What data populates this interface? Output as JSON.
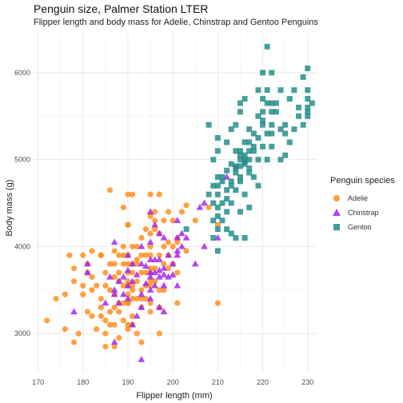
{
  "chart_data": {
    "type": "scatter",
    "title": "Penguin size, Palmer Station LTER",
    "subtitle": "Flipper length and body mass for Adelie, Chinstrap and Gentoo Penguins",
    "xlabel": "Flipper length (mm)",
    "ylabel": "Body mass (g)",
    "xlim": [
      169,
      232
    ],
    "ylim": [
      2550,
      6450
    ],
    "x_ticks": [
      170,
      180,
      190,
      200,
      210,
      220,
      230
    ],
    "y_ticks": [
      3000,
      4000,
      5000,
      6000
    ],
    "grid": true,
    "legend": {
      "title": "Penguin species",
      "placement": "right"
    },
    "series": [
      {
        "name": "Adelie",
        "color": "#FF8C1A",
        "marker": "circle",
        "points": [
          [
            172,
            3150
          ],
          [
            174,
            3400
          ],
          [
            176,
            3450
          ],
          [
            176,
            3050
          ],
          [
            177,
            3900
          ],
          [
            178,
            2900
          ],
          [
            178,
            3750
          ],
          [
            178,
            3600
          ],
          [
            179,
            3000
          ],
          [
            180,
            3550
          ],
          [
            180,
            3450
          ],
          [
            180,
            3900
          ],
          [
            181,
            3250
          ],
          [
            181,
            3800
          ],
          [
            181,
            3700
          ],
          [
            182,
            3200
          ],
          [
            182,
            3500
          ],
          [
            182,
            3950
          ],
          [
            183,
            3550
          ],
          [
            183,
            3050
          ],
          [
            184,
            3400
          ],
          [
            184,
            3900
          ],
          [
            184,
            3300
          ],
          [
            184,
            3900
          ],
          [
            185,
            3000
          ],
          [
            185,
            3700
          ],
          [
            185,
            3150
          ],
          [
            185,
            3550
          ],
          [
            185,
            2850
          ],
          [
            186,
            3250
          ],
          [
            186,
            4650
          ],
          [
            186,
            3800
          ],
          [
            186,
            3500
          ],
          [
            186,
            3100
          ],
          [
            187,
            3300
          ],
          [
            187,
            3650
          ],
          [
            187,
            2850
          ],
          [
            187,
            3450
          ],
          [
            187,
            3100
          ],
          [
            187,
            3800
          ],
          [
            188,
            3250
          ],
          [
            188,
            3600
          ],
          [
            188,
            2950
          ],
          [
            188,
            3350
          ],
          [
            188,
            3700
          ],
          [
            188,
            3900
          ],
          [
            189,
            3550
          ],
          [
            189,
            3350
          ],
          [
            189,
            4450
          ],
          [
            189,
            3150
          ],
          [
            189,
            3900
          ],
          [
            189,
            3800
          ],
          [
            190,
            3600
          ],
          [
            190,
            3450
          ],
          [
            190,
            3100
          ],
          [
            190,
            3900
          ],
          [
            190,
            4250
          ],
          [
            190,
            3050
          ],
          [
            190,
            3550
          ],
          [
            190,
            4250
          ],
          [
            190,
            3700
          ],
          [
            190,
            4600
          ],
          [
            190,
            3350
          ],
          [
            190,
            3800
          ],
          [
            191,
            3500
          ],
          [
            191,
            3200
          ],
          [
            191,
            3800
          ],
          [
            191,
            3700
          ],
          [
            191,
            4000
          ],
          [
            191,
            3550
          ],
          [
            191,
            4600
          ],
          [
            191,
            3400
          ],
          [
            192,
            3000
          ],
          [
            192,
            3600
          ],
          [
            192,
            4000
          ],
          [
            192,
            3800
          ],
          [
            192,
            3400
          ],
          [
            193,
            3700
          ],
          [
            193,
            3500
          ],
          [
            193,
            3900
          ],
          [
            193,
            3400
          ],
          [
            193,
            4100
          ],
          [
            193,
            3300
          ],
          [
            193,
            2900
          ],
          [
            194,
            3400
          ],
          [
            194,
            3700
          ],
          [
            194,
            3550
          ],
          [
            194,
            3900
          ],
          [
            194,
            4200
          ],
          [
            195,
            3750
          ],
          [
            195,
            3250
          ],
          [
            195,
            4000
          ],
          [
            195,
            3550
          ],
          [
            195,
            3900
          ],
          [
            195,
            3350
          ],
          [
            195,
            3700
          ],
          [
            195,
            4350
          ],
          [
            195,
            4150
          ],
          [
            195,
            4600
          ],
          [
            196,
            3600
          ],
          [
            196,
            4300
          ],
          [
            196,
            4400
          ],
          [
            196,
            3750
          ],
          [
            197,
            3500
          ],
          [
            197,
            4150
          ],
          [
            197,
            3300
          ],
          [
            197,
            3900
          ],
          [
            197,
            4600
          ],
          [
            198,
            3800
          ],
          [
            198,
            3500
          ],
          [
            198,
            4300
          ],
          [
            198,
            4000
          ],
          [
            199,
            3750
          ],
          [
            199,
            4400
          ],
          [
            199,
            3900
          ],
          [
            199,
            4050
          ],
          [
            200,
            4000
          ],
          [
            200,
            3800
          ],
          [
            200,
            4300
          ],
          [
            201,
            4050
          ],
          [
            201,
            3700
          ],
          [
            201,
            3350
          ],
          [
            201,
            4100
          ],
          [
            202,
            4400
          ],
          [
            203,
            3950
          ],
          [
            203,
            4475
          ],
          [
            205,
            4300
          ],
          [
            208,
            4450
          ],
          [
            210,
            4250
          ],
          [
            210,
            3350
          ],
          [
            192,
            3850
          ],
          [
            197,
            3000
          ],
          [
            189,
            4000
          ],
          [
            187,
            3950
          ],
          [
            182,
            3650
          ],
          [
            184,
            3200
          ],
          [
            191,
            3100
          ],
          [
            196,
            4200
          ],
          [
            195,
            3600
          ],
          [
            190,
            3350
          ]
        ]
      },
      {
        "name": "Chinstrap",
        "color": "#A020F0",
        "marker": "triangle",
        "points": [
          [
            178,
            3250
          ],
          [
            181,
            3700
          ],
          [
            181,
            3800
          ],
          [
            185,
            3350
          ],
          [
            186,
            3650
          ],
          [
            187,
            3500
          ],
          [
            187,
            4050
          ],
          [
            187,
            3450
          ],
          [
            188,
            3600
          ],
          [
            189,
            3650
          ],
          [
            190,
            3725
          ],
          [
            190,
            3900
          ],
          [
            190,
            3550
          ],
          [
            190,
            3400
          ],
          [
            191,
            3600
          ],
          [
            191,
            3800
          ],
          [
            192,
            3675
          ],
          [
            193,
            3300
          ],
          [
            193,
            3800
          ],
          [
            193,
            3450
          ],
          [
            194,
            3575
          ],
          [
            195,
            3500
          ],
          [
            195,
            3650
          ],
          [
            195,
            3700
          ],
          [
            195,
            4050
          ],
          [
            195,
            3850
          ],
          [
            195,
            4400
          ],
          [
            196,
            3700
          ],
          [
            196,
            3850
          ],
          [
            196,
            3550
          ],
          [
            197,
            3850
          ],
          [
            197,
            3725
          ],
          [
            197,
            3300
          ],
          [
            197,
            4150
          ],
          [
            198,
            3750
          ],
          [
            198,
            3250
          ],
          [
            198,
            4100
          ],
          [
            198,
            3675
          ],
          [
            198,
            3550
          ],
          [
            199,
            3900
          ],
          [
            200,
            3800
          ],
          [
            201,
            4300
          ],
          [
            201,
            3550
          ],
          [
            201,
            4100
          ],
          [
            201,
            3950
          ],
          [
            202,
            4150
          ],
          [
            203,
            4100
          ],
          [
            205,
            3800
          ],
          [
            206,
            4450
          ],
          [
            207,
            4500
          ],
          [
            207,
            4000
          ],
          [
            210,
            4100
          ],
          [
            212,
            4800
          ],
          [
            191,
            3100
          ],
          [
            187,
            2900
          ],
          [
            193,
            2700
          ],
          [
            188,
            3350
          ],
          [
            200,
            3675
          ],
          [
            193,
            4000
          ],
          [
            197,
            3650
          ],
          [
            195,
            3400
          ],
          [
            196,
            4250
          ],
          [
            192,
            3200
          ],
          [
            189,
            3450
          ],
          [
            199,
            3650
          ],
          [
            194,
            3775
          ],
          [
            202,
            4000
          ],
          [
            201,
            3900
          ]
        ]
      },
      {
        "name": "Gentoo",
        "color": "#1F8A87",
        "marker": "square",
        "points": [
          [
            203,
            4200
          ],
          [
            208,
            4600
          ],
          [
            208,
            5400
          ],
          [
            209,
            4300
          ],
          [
            209,
            4500
          ],
          [
            209,
            4700
          ],
          [
            209,
            5000
          ],
          [
            210,
            4350
          ],
          [
            210,
            4600
          ],
          [
            210,
            4700
          ],
          [
            210,
            4800
          ],
          [
            210,
            5100
          ],
          [
            210,
            5250
          ],
          [
            210,
            3950
          ],
          [
            210,
            4450
          ],
          [
            211,
            4750
          ],
          [
            211,
            4500
          ],
          [
            211,
            4800
          ],
          [
            212,
            4550
          ],
          [
            212,
            5200
          ],
          [
            212,
            4875
          ],
          [
            212,
            4650
          ],
          [
            212,
            4400
          ],
          [
            213,
            4700
          ],
          [
            213,
            4950
          ],
          [
            213,
            5350
          ],
          [
            213,
            4750
          ],
          [
            213,
            4500
          ],
          [
            214,
            4850
          ],
          [
            214,
            4650
          ],
          [
            214,
            5100
          ],
          [
            214,
            4925
          ],
          [
            214,
            5400
          ],
          [
            214,
            4900
          ],
          [
            215,
            5100
          ],
          [
            215,
            4750
          ],
          [
            215,
            5650
          ],
          [
            215,
            5550
          ],
          [
            215,
            5050
          ],
          [
            215,
            5000
          ],
          [
            215,
            4925
          ],
          [
            215,
            4800
          ],
          [
            215,
            4400
          ],
          [
            216,
            5000
          ],
          [
            216,
            4600
          ],
          [
            216,
            5200
          ],
          [
            216,
            5050
          ],
          [
            216,
            4975
          ],
          [
            216,
            5700
          ],
          [
            216,
            4950
          ],
          [
            217,
            4900
          ],
          [
            217,
            5000
          ],
          [
            217,
            5350
          ],
          [
            217,
            5200
          ],
          [
            217,
            4850
          ],
          [
            217,
            5100
          ],
          [
            218,
            5300
          ],
          [
            218,
            5100
          ],
          [
            218,
            4800
          ],
          [
            218,
            5150
          ],
          [
            219,
            5500
          ],
          [
            219,
            5250
          ],
          [
            219,
            4700
          ],
          [
            219,
            5800
          ],
          [
            219,
            5000
          ],
          [
            220,
            5550
          ],
          [
            220,
            5150
          ],
          [
            220,
            5700
          ],
          [
            220,
            6000
          ],
          [
            220,
            5450
          ],
          [
            220,
            5400
          ],
          [
            221,
            5800
          ],
          [
            221,
            5300
          ],
          [
            221,
            5650
          ],
          [
            221,
            6300
          ],
          [
            221,
            5000
          ],
          [
            222,
            6000
          ],
          [
            222,
            5550
          ],
          [
            222,
            5650
          ],
          [
            222,
            5300
          ],
          [
            222,
            5150
          ],
          [
            223,
            5650
          ],
          [
            223,
            5550
          ],
          [
            224,
            5800
          ],
          [
            224,
            5350
          ],
          [
            225,
            5400
          ],
          [
            225,
            5300
          ],
          [
            225,
            5050
          ],
          [
            226,
            5700
          ],
          [
            227,
            5800
          ],
          [
            227,
            5350
          ],
          [
            228,
            5600
          ],
          [
            228,
            5500
          ],
          [
            229,
            5950
          ],
          [
            229,
            5400
          ],
          [
            230,
            6050
          ],
          [
            230,
            5800
          ],
          [
            230,
            5550
          ],
          [
            230,
            5500
          ],
          [
            230,
            5700
          ],
          [
            230,
            5600
          ],
          [
            231,
            5650
          ],
          [
            213,
            4150
          ],
          [
            209,
            4100
          ],
          [
            212,
            4200
          ],
          [
            214,
            4100
          ],
          [
            216,
            4100
          ],
          [
            217,
            4450
          ],
          [
            210,
            4200
          ],
          [
            211,
            4300
          ],
          [
            224,
            5000
          ],
          [
            222,
            5400
          ],
          [
            226,
            5200
          ]
        ]
      }
    ]
  }
}
